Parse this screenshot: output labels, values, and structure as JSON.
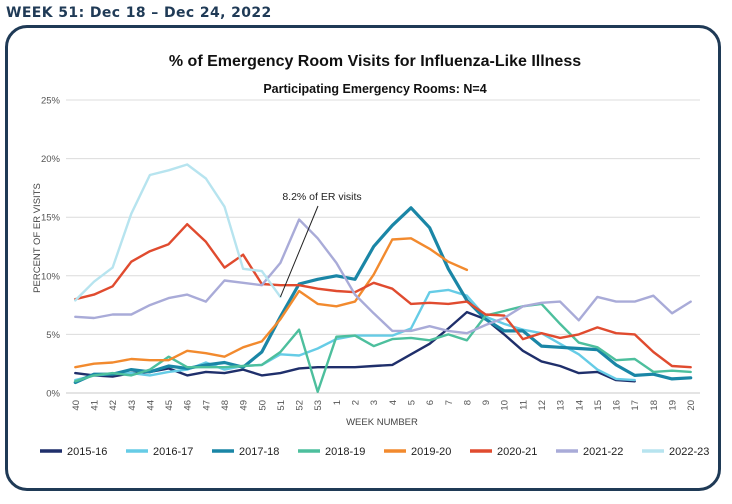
{
  "page": {
    "header": "WEEK 51: Dec 18 – Dec 24, 2022"
  },
  "chart_data": {
    "type": "line",
    "title": "% of Emergency Room Visits for Influenza-Like Illness",
    "subtitle": "Participating Emergency Rooms: N=4",
    "xlabel": "WEEK NUMBER",
    "ylabel": "PERCENT OF ER VISITS",
    "ylim": [
      0,
      25
    ],
    "yticks": [
      "0%",
      "5%",
      "10%",
      "15%",
      "20%",
      "25%"
    ],
    "grid": "horizontal",
    "legend": "bottom",
    "annotation": {
      "text": "8.2% of ER visits",
      "x": "51",
      "y": 8.2
    },
    "categories": [
      "40",
      "41",
      "42",
      "43",
      "44",
      "45",
      "46",
      "47",
      "48",
      "49",
      "50",
      "51",
      "52",
      "53",
      "1",
      "2",
      "3",
      "4",
      "5",
      "6",
      "7",
      "8",
      "9",
      "10",
      "11",
      "12",
      "13",
      "14",
      "15",
      "16",
      "17",
      "18",
      "19",
      "20"
    ],
    "series": [
      {
        "name": "2015-16",
        "color": "#1f2f6b",
        "values": [
          1.7,
          1.5,
          1.4,
          1.7,
          1.8,
          2.1,
          1.5,
          1.8,
          1.7,
          2.0,
          1.5,
          1.7,
          2.1,
          2.2,
          2.2,
          2.2,
          2.3,
          2.4,
          3.3,
          4.2,
          5.5,
          6.9,
          6.3,
          5.0,
          3.6,
          2.7,
          2.3,
          1.7,
          1.8,
          1.1,
          1.0,
          null,
          null,
          null
        ]
      },
      {
        "name": "2016-17",
        "color": "#66cce6",
        "values": [
          1.1,
          1.5,
          1.6,
          1.7,
          1.5,
          1.8,
          2.0,
          2.6,
          2.0,
          2.3,
          2.4,
          3.3,
          3.2,
          3.8,
          4.6,
          4.9,
          4.9,
          4.9,
          5.5,
          8.6,
          8.8,
          8.3,
          6.5,
          5.9,
          5.4,
          5.1,
          4.2,
          3.3,
          2.0,
          1.2,
          1.1,
          null,
          null,
          null
        ]
      },
      {
        "name": "2017-18",
        "color": "#1a86a6",
        "values": [
          0.9,
          1.6,
          1.6,
          2.0,
          1.8,
          2.3,
          2.1,
          2.4,
          2.6,
          2.2,
          3.5,
          6.5,
          9.3,
          9.7,
          10.0,
          9.7,
          12.5,
          14.3,
          15.8,
          14.1,
          10.6,
          7.9,
          6.3,
          5.3,
          5.3,
          4.0,
          3.9,
          3.8,
          3.7,
          2.4,
          1.5,
          1.6,
          1.2,
          1.3
        ]
      },
      {
        "name": "2018-19",
        "color": "#4dbf9d",
        "values": [
          1.0,
          1.5,
          1.7,
          1.5,
          2.0,
          3.1,
          2.2,
          2.2,
          2.2,
          2.3,
          2.4,
          3.5,
          5.4,
          0.1,
          4.8,
          4.9,
          4.0,
          4.6,
          4.7,
          4.5,
          5.0,
          4.5,
          6.6,
          7.0,
          7.4,
          7.6,
          5.9,
          4.3,
          3.9,
          2.8,
          2.9,
          1.8,
          1.9,
          1.8
        ]
      },
      {
        "name": "2019-20",
        "color": "#f28a2e",
        "values": [
          2.2,
          2.5,
          2.6,
          2.9,
          2.8,
          2.8,
          3.6,
          3.4,
          3.1,
          3.9,
          4.4,
          6.3,
          8.7,
          7.6,
          7.4,
          7.8,
          10.1,
          13.1,
          13.2,
          12.3,
          11.2,
          10.5,
          null,
          null,
          null,
          null,
          null,
          null,
          null,
          null,
          null,
          null,
          null,
          null
        ]
      },
      {
        "name": "2020-21",
        "color": "#e04b2f",
        "values": [
          8.0,
          8.4,
          9.1,
          11.2,
          12.1,
          12.7,
          14.4,
          12.9,
          10.7,
          11.8,
          9.3,
          9.2,
          9.2,
          8.9,
          8.7,
          8.6,
          9.4,
          8.9,
          7.6,
          7.7,
          7.6,
          7.8,
          6.7,
          6.6,
          4.6,
          5.1,
          4.7,
          5.0,
          5.6,
          5.1,
          5.0,
          3.5,
          2.3,
          2.2
        ]
      },
      {
        "name": "2021-22",
        "color": "#a9abd8",
        "values": [
          6.5,
          6.4,
          6.7,
          6.7,
          7.5,
          8.1,
          8.4,
          7.8,
          9.6,
          9.4,
          9.2,
          11.1,
          14.8,
          13.2,
          11.1,
          8.4,
          6.8,
          5.3,
          5.3,
          5.7,
          5.3,
          5.1,
          5.8,
          6.4,
          7.4,
          7.7,
          7.8,
          6.2,
          8.2,
          7.8,
          7.8,
          8.3,
          6.8,
          7.8
        ]
      },
      {
        "name": "2022-23",
        "color": "#b7e4ef",
        "values": [
          7.9,
          9.5,
          10.7,
          15.3,
          18.6,
          19.0,
          19.5,
          18.3,
          15.9,
          10.6,
          10.4,
          8.2,
          null,
          null,
          null,
          null,
          null,
          null,
          null,
          null,
          null,
          null,
          null,
          null,
          null,
          null,
          null,
          null,
          null,
          null,
          null,
          null,
          null,
          null
        ]
      }
    ]
  }
}
